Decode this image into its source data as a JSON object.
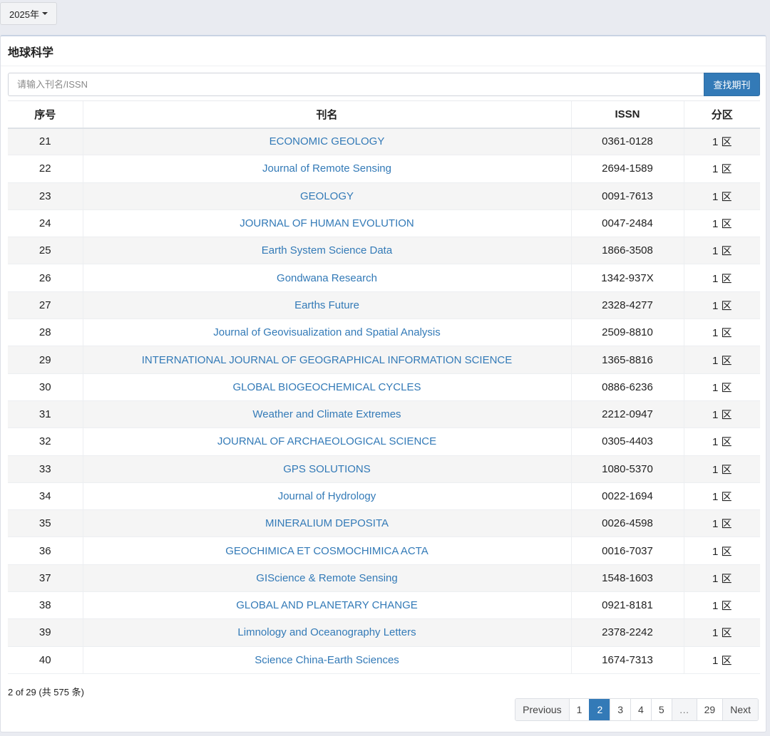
{
  "year_selector": {
    "label": "2025年"
  },
  "panel": {
    "title": "地球科学",
    "search_placeholder": "请输入刊名/ISSN",
    "search_button": "查找期刊"
  },
  "table": {
    "headers": [
      "序号",
      "刊名",
      "ISSN",
      "分区"
    ],
    "rows": [
      {
        "no": "21",
        "name": "ECONOMIC GEOLOGY",
        "issn": "0361-0128",
        "zone": "1 区"
      },
      {
        "no": "22",
        "name": "Journal of Remote Sensing",
        "issn": "2694-1589",
        "zone": "1 区"
      },
      {
        "no": "23",
        "name": "GEOLOGY",
        "issn": "0091-7613",
        "zone": "1 区"
      },
      {
        "no": "24",
        "name": "JOURNAL OF HUMAN EVOLUTION",
        "issn": "0047-2484",
        "zone": "1 区"
      },
      {
        "no": "25",
        "name": "Earth System Science Data",
        "issn": "1866-3508",
        "zone": "1 区"
      },
      {
        "no": "26",
        "name": "Gondwana Research",
        "issn": "1342-937X",
        "zone": "1 区"
      },
      {
        "no": "27",
        "name": "Earths Future",
        "issn": "2328-4277",
        "zone": "1 区"
      },
      {
        "no": "28",
        "name": "Journal of Geovisualization and Spatial Analysis",
        "issn": "2509-8810",
        "zone": "1 区"
      },
      {
        "no": "29",
        "name": "INTERNATIONAL JOURNAL OF GEOGRAPHICAL INFORMATION SCIENCE",
        "issn": "1365-8816",
        "zone": "1 区"
      },
      {
        "no": "30",
        "name": "GLOBAL BIOGEOCHEMICAL CYCLES",
        "issn": "0886-6236",
        "zone": "1 区"
      },
      {
        "no": "31",
        "name": "Weather and Climate Extremes",
        "issn": "2212-0947",
        "zone": "1 区"
      },
      {
        "no": "32",
        "name": "JOURNAL OF ARCHAEOLOGICAL SCIENCE",
        "issn": "0305-4403",
        "zone": "1 区"
      },
      {
        "no": "33",
        "name": "GPS SOLUTIONS",
        "issn": "1080-5370",
        "zone": "1 区"
      },
      {
        "no": "34",
        "name": "Journal of Hydrology",
        "issn": "0022-1694",
        "zone": "1 区"
      },
      {
        "no": "35",
        "name": "MINERALIUM DEPOSITA",
        "issn": "0026-4598",
        "zone": "1 区"
      },
      {
        "no": "36",
        "name": "GEOCHIMICA ET COSMOCHIMICA ACTA",
        "issn": "0016-7037",
        "zone": "1 区"
      },
      {
        "no": "37",
        "name": "GIScience & Remote Sensing",
        "issn": "1548-1603",
        "zone": "1 区"
      },
      {
        "no": "38",
        "name": "GLOBAL AND PLANETARY CHANGE",
        "issn": "0921-8181",
        "zone": "1 区"
      },
      {
        "no": "39",
        "name": "Limnology and Oceanography Letters",
        "issn": "2378-2242",
        "zone": "1 区"
      },
      {
        "no": "40",
        "name": "Science China-Earth Sciences",
        "issn": "1674-7313",
        "zone": "1 区"
      }
    ]
  },
  "footer": {
    "info": "2 of 29 (共 575 条)"
  },
  "pagination": {
    "previous": "Previous",
    "next": "Next",
    "pages": [
      "1",
      "2",
      "3",
      "4",
      "5",
      "…",
      "29"
    ],
    "active": "2"
  },
  "colors": {
    "accent": "#337ab7",
    "background": "#e9ebf1"
  }
}
